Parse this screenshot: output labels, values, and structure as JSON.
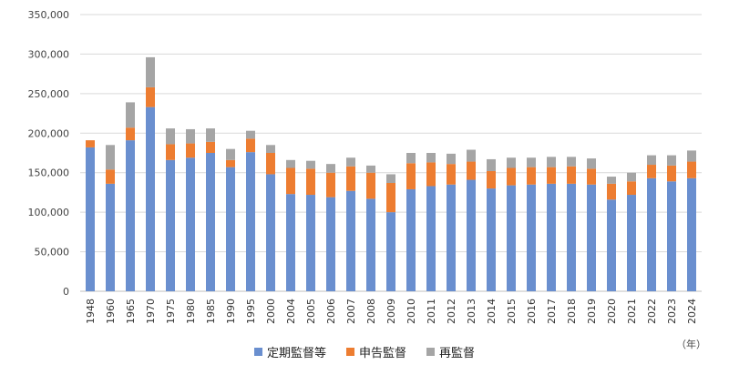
{
  "chart_data": {
    "type": "bar",
    "stacked": true,
    "categories": [
      "1948",
      "1960",
      "1965",
      "1970",
      "1975",
      "1980",
      "1985",
      "1990",
      "1995",
      "2000",
      "2004",
      "2005",
      "2006",
      "2007",
      "2008",
      "2009",
      "2010",
      "2011",
      "2012",
      "2013",
      "2014",
      "2015",
      "2016",
      "2017",
      "2018",
      "2019",
      "2020",
      "2021",
      "2022",
      "2023",
      "2024"
    ],
    "series": [
      {
        "name": "定期監督等",
        "color": "#6a8fcf",
        "values": [
          182000,
          136000,
          191000,
          233000,
          166000,
          169000,
          175000,
          157000,
          176000,
          148000,
          123000,
          122000,
          119000,
          127000,
          117000,
          100000,
          129000,
          133000,
          135000,
          141000,
          130000,
          134000,
          135000,
          136000,
          136000,
          135000,
          116000,
          122000,
          143000,
          139000,
          143000
        ]
      },
      {
        "name": "申告監督",
        "color": "#ed7d31",
        "values": [
          9000,
          18000,
          16000,
          25000,
          20000,
          18000,
          14000,
          9000,
          17000,
          27000,
          33000,
          33000,
          31000,
          31000,
          33000,
          37000,
          33000,
          30000,
          26000,
          23000,
          22000,
          22000,
          22000,
          21000,
          22000,
          20000,
          20000,
          17000,
          17000,
          20000,
          21000
        ]
      },
      {
        "name": "再監督",
        "color": "#a5a5a5",
        "values": [
          0,
          31000,
          32000,
          38000,
          20000,
          18000,
          17000,
          14000,
          10000,
          10000,
          10000,
          10000,
          11000,
          11000,
          9000,
          11000,
          13000,
          12000,
          13000,
          15000,
          15000,
          13000,
          12000,
          13000,
          12000,
          13000,
          9000,
          11000,
          12000,
          13000,
          14000
        ]
      }
    ],
    "yticks": [
      "0",
      "50,000",
      "100,000",
      "150,000",
      "200,000",
      "250,000",
      "300,000",
      "350,000"
    ],
    "ylim": [
      0,
      350000
    ],
    "grid": true,
    "legend": "bottom",
    "unit_label": "（年）"
  }
}
